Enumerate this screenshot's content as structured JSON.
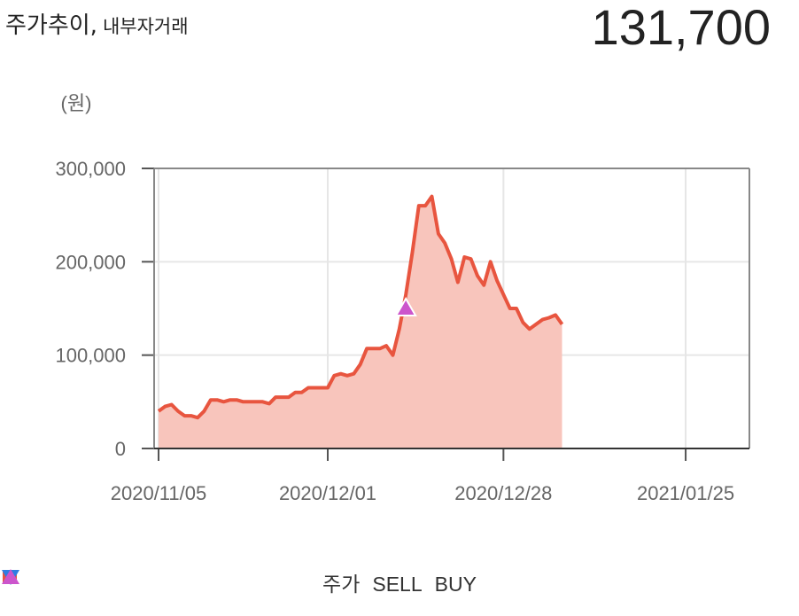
{
  "header": {
    "title": "주가추이,",
    "subtitle": "내부자거래",
    "current_price": "131,700"
  },
  "chart_data": {
    "type": "area",
    "unit_label": "(원)",
    "x_ticks": [
      "2020/11/05",
      "2020/12/01",
      "2020/12/28",
      "2021/01/25"
    ],
    "y_ticks": [
      "300,000",
      "200,000",
      "100,000",
      "0"
    ],
    "ylim": [
      0,
      300000
    ],
    "grid": true,
    "legend_position": "bottom",
    "series": [
      {
        "name": "주가",
        "color": "#e8553f",
        "fill": "#f8c5bc",
        "values": [
          [
            "2020-11-05",
            40000
          ],
          [
            "2020-11-06",
            45000
          ],
          [
            "2020-11-07",
            47000
          ],
          [
            "2020-11-08",
            40000
          ],
          [
            "2020-11-09",
            35000
          ],
          [
            "2020-11-10",
            35000
          ],
          [
            "2020-11-11",
            33000
          ],
          [
            "2020-11-12",
            40000
          ],
          [
            "2020-11-13",
            52000
          ],
          [
            "2020-11-14",
            52000
          ],
          [
            "2020-11-15",
            50000
          ],
          [
            "2020-11-16",
            52000
          ],
          [
            "2020-11-17",
            52000
          ],
          [
            "2020-11-18",
            50000
          ],
          [
            "2020-11-19",
            50000
          ],
          [
            "2020-11-20",
            50000
          ],
          [
            "2020-11-21",
            50000
          ],
          [
            "2020-11-22",
            48000
          ],
          [
            "2020-11-23",
            55000
          ],
          [
            "2020-11-24",
            55000
          ],
          [
            "2020-11-25",
            55000
          ],
          [
            "2020-11-26",
            60000
          ],
          [
            "2020-11-27",
            60000
          ],
          [
            "2020-11-28",
            65000
          ],
          [
            "2020-11-29",
            65000
          ],
          [
            "2020-11-30",
            65000
          ],
          [
            "2020-12-01",
            65000
          ],
          [
            "2020-12-02",
            78000
          ],
          [
            "2020-12-03",
            80000
          ],
          [
            "2020-12-04",
            78000
          ],
          [
            "2020-12-05",
            80000
          ],
          [
            "2020-12-06",
            90000
          ],
          [
            "2020-12-07",
            107000
          ],
          [
            "2020-12-08",
            107000
          ],
          [
            "2020-12-09",
            107000
          ],
          [
            "2020-12-10",
            110000
          ],
          [
            "2020-12-11",
            100000
          ],
          [
            "2020-12-12",
            128000
          ],
          [
            "2020-12-13",
            165000
          ],
          [
            "2020-12-14",
            210000
          ],
          [
            "2020-12-15",
            260000
          ],
          [
            "2020-12-16",
            260000
          ],
          [
            "2020-12-17",
            270000
          ],
          [
            "2020-12-18",
            230000
          ],
          [
            "2020-12-19",
            220000
          ],
          [
            "2020-12-20",
            203000
          ],
          [
            "2020-12-21",
            178000
          ],
          [
            "2020-12-22",
            205000
          ],
          [
            "2020-12-23",
            203000
          ],
          [
            "2020-12-24",
            185000
          ],
          [
            "2020-12-25",
            175000
          ],
          [
            "2020-12-26",
            200000
          ],
          [
            "2020-12-27",
            180000
          ],
          [
            "2020-12-28",
            165000
          ],
          [
            "2020-12-29",
            150000
          ],
          [
            "2020-12-30",
            150000
          ],
          [
            "2020-12-31",
            135000
          ],
          [
            "2021-01-01",
            128000
          ],
          [
            "2021-01-02",
            133000
          ],
          [
            "2021-01-03",
            138000
          ],
          [
            "2021-01-04",
            140000
          ],
          [
            "2021-01-05",
            143000
          ],
          [
            "2021-01-06",
            133000
          ]
        ]
      }
    ],
    "markers": [
      {
        "name": "SELL",
        "color": "#2f7de1",
        "shape": "triangle-down",
        "points": []
      },
      {
        "name": "BUY",
        "color": "#cc55cc",
        "shape": "triangle-up",
        "points": [
          [
            "2020-12-13",
            150000
          ]
        ]
      }
    ],
    "legend": [
      {
        "label": "주가",
        "color": "#e8553f",
        "shape": "square"
      },
      {
        "label": "SELL",
        "color": "#2f7de1",
        "shape": "triangle-down"
      },
      {
        "label": "BUY",
        "color": "#cc55cc",
        "shape": "triangle-up"
      }
    ]
  }
}
